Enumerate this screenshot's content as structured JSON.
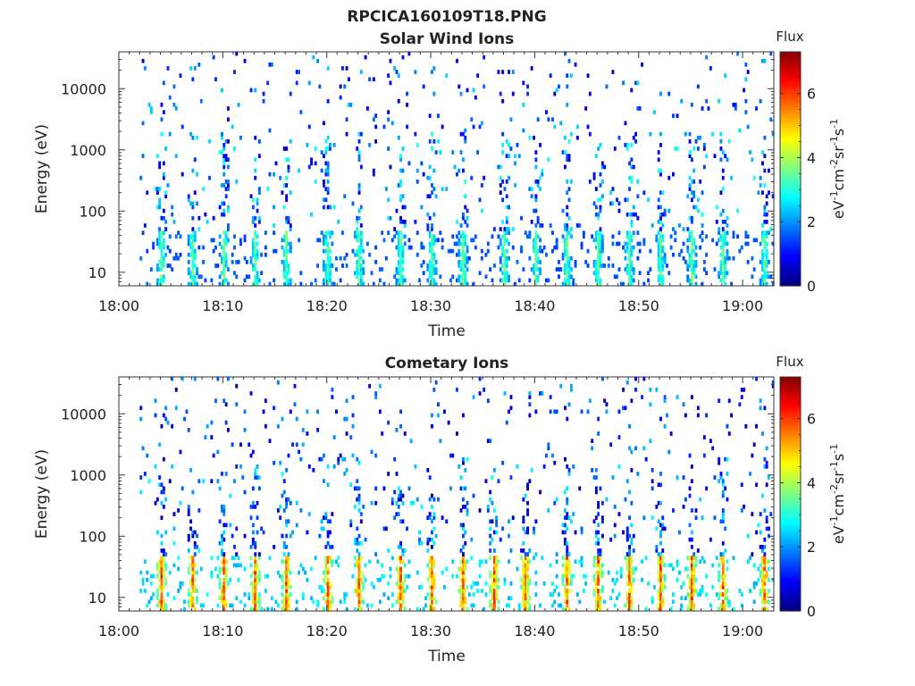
{
  "figure": {
    "title": "RPCICA160109T18.PNG"
  },
  "colormap": "jet",
  "chart_data": [
    {
      "type": "heatmap",
      "title": "Solar Wind Ions",
      "xlabel": "Time",
      "ylabel": "Energy (eV)",
      "y_scale": "log",
      "xlim": [
        "18:00",
        "19:03"
      ],
      "ylim": [
        6,
        40000
      ],
      "x_ticks": [
        "18:00",
        "18:10",
        "18:20",
        "18:30",
        "18:40",
        "18:50",
        "19:00"
      ],
      "y_ticks": [
        "10",
        "100",
        "1000",
        "10000"
      ],
      "colorbar": {
        "title": "Flux",
        "label": "eV-1cm-2sr-1s-1",
        "label_parts": [
          "eV",
          "-1",
          "cm",
          "-2",
          "sr",
          "-1",
          "s",
          "-1"
        ],
        "range": [
          0,
          7.3
        ],
        "ticks": [
          "0",
          "2",
          "4",
          "6"
        ]
      },
      "distribution": {
        "start_time": "18:02",
        "bursts_at": [
          "18:04",
          "18:07",
          "18:10",
          "18:13",
          "18:16",
          "18:20",
          "18:23",
          "18:27",
          "18:30",
          "18:33",
          "18:37",
          "18:40",
          "18:43",
          "18:46",
          "18:49",
          "18:52",
          "18:55",
          "18:58",
          "19:02"
        ],
        "low_energy_flux_peak": 3.8,
        "background_flux_range": [
          0.5,
          3.0
        ]
      }
    },
    {
      "type": "heatmap",
      "title": "Cometary Ions",
      "xlabel": "Time",
      "ylabel": "Energy (eV)",
      "y_scale": "log",
      "xlim": [
        "18:00",
        "19:03"
      ],
      "ylim": [
        6,
        40000
      ],
      "x_ticks": [
        "18:00",
        "18:10",
        "18:20",
        "18:30",
        "18:40",
        "18:50",
        "19:00"
      ],
      "y_ticks": [
        "10",
        "100",
        "1000",
        "10000"
      ],
      "colorbar": {
        "title": "Flux",
        "label": "eV-1cm-2sr-1s-1",
        "label_parts": [
          "eV",
          "-1",
          "cm",
          "-2",
          "sr",
          "-1",
          "s",
          "-1"
        ],
        "range": [
          0,
          7.3
        ],
        "ticks": [
          "0",
          "2",
          "4",
          "6"
        ]
      },
      "distribution": {
        "start_time": "18:02",
        "bursts_at": [
          "18:04",
          "18:07",
          "18:10",
          "18:13",
          "18:16",
          "18:20",
          "18:23",
          "18:27",
          "18:30",
          "18:33",
          "18:36",
          "18:39",
          "18:43",
          "18:46",
          "18:49",
          "18:52",
          "18:55",
          "18:58",
          "19:02"
        ],
        "low_energy_flux_peak": 6.3,
        "background_flux_range": [
          0.3,
          2.8
        ]
      }
    }
  ]
}
